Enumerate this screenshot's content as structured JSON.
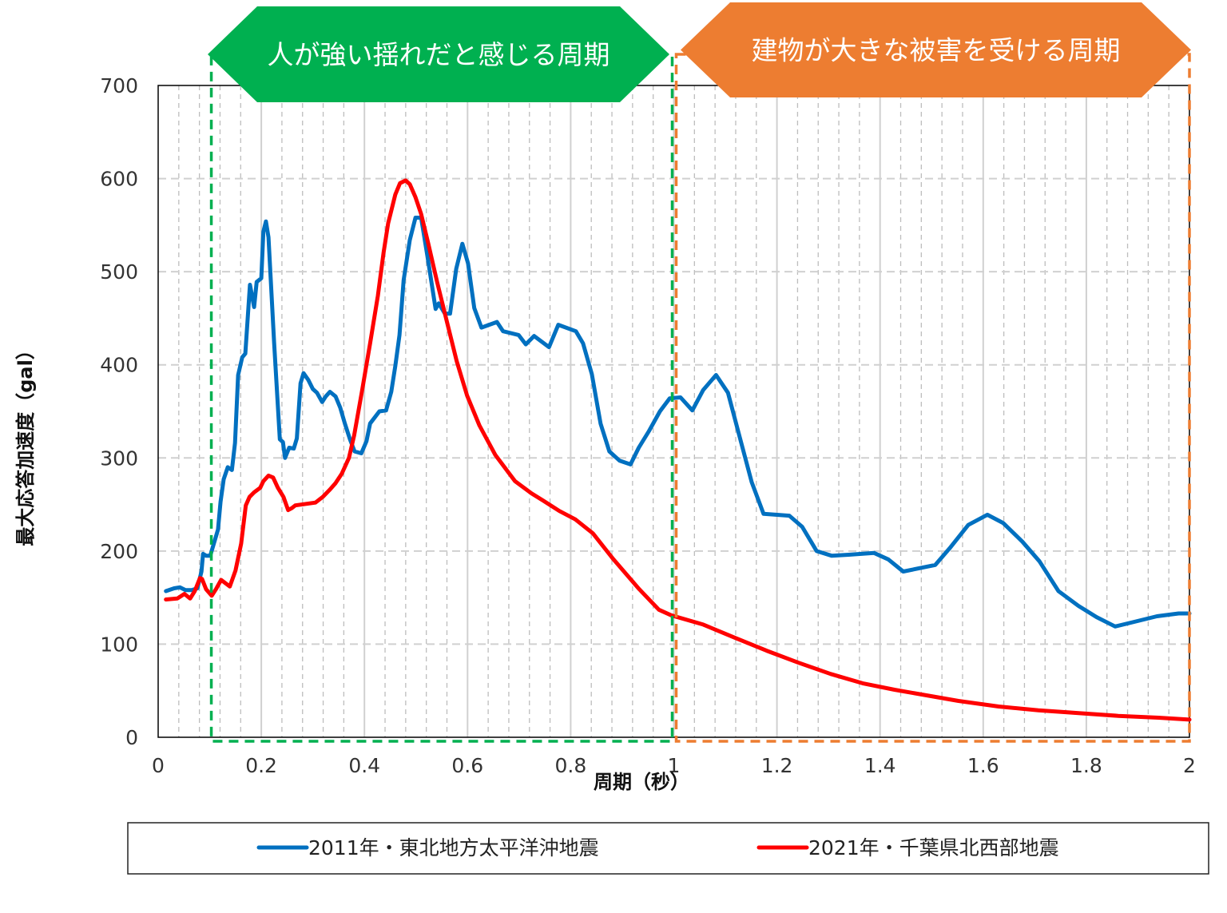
{
  "chart_data": {
    "type": "line",
    "xlabel": "周期（秒）",
    "ylabel": "最大応答加速度（gal）",
    "xlim": [
      0,
      2
    ],
    "ylim": [
      0,
      700
    ],
    "x_ticks": [
      "0",
      "0.2",
      "0.4",
      "0.6",
      "0.8",
      "1",
      "1.2",
      "1.4",
      "1.6",
      "1.8",
      "2"
    ],
    "y_ticks": [
      "0",
      "100",
      "200",
      "300",
      "400",
      "500",
      "600",
      "700"
    ],
    "grid": true,
    "legend_position": "bottom",
    "annotations": [
      {
        "label": "人が強い揺れだと感じる周期",
        "range": [
          0.1,
          1.0
        ],
        "color": "#00B050"
      },
      {
        "label": "建物が大きな被害を受ける周期",
        "range": [
          1.0,
          2.0
        ],
        "color": "#ED7D31"
      }
    ],
    "series": [
      {
        "name": "2011年・東北地方太平洋沖地震",
        "color": "#0070C0",
        "points": [
          [
            0.015,
            157
          ],
          [
            0.031,
            160
          ],
          [
            0.042,
            161
          ],
          [
            0.053,
            158
          ],
          [
            0.065,
            158
          ],
          [
            0.076,
            160
          ],
          [
            0.084,
            178
          ],
          [
            0.087,
            197
          ],
          [
            0.093,
            195
          ],
          [
            0.101,
            195
          ],
          [
            0.108,
            208
          ],
          [
            0.116,
            223
          ],
          [
            0.121,
            253
          ],
          [
            0.127,
            277
          ],
          [
            0.135,
            290
          ],
          [
            0.143,
            287
          ],
          [
            0.149,
            316
          ],
          [
            0.155,
            389
          ],
          [
            0.163,
            408
          ],
          [
            0.169,
            412
          ],
          [
            0.178,
            486
          ],
          [
            0.186,
            462
          ],
          [
            0.191,
            489
          ],
          [
            0.2,
            493
          ],
          [
            0.204,
            543
          ],
          [
            0.209,
            554
          ],
          [
            0.214,
            537
          ],
          [
            0.225,
            423
          ],
          [
            0.236,
            320
          ],
          [
            0.242,
            317
          ],
          [
            0.246,
            300
          ],
          [
            0.254,
            311
          ],
          [
            0.263,
            310
          ],
          [
            0.269,
            321
          ],
          [
            0.276,
            380
          ],
          [
            0.282,
            391
          ],
          [
            0.291,
            384
          ],
          [
            0.3,
            374
          ],
          [
            0.308,
            370
          ],
          [
            0.318,
            360
          ],
          [
            0.325,
            366
          ],
          [
            0.333,
            371
          ],
          [
            0.344,
            366
          ],
          [
            0.353,
            354
          ],
          [
            0.362,
            337
          ],
          [
            0.372,
            320
          ],
          [
            0.381,
            307
          ],
          [
            0.394,
            305
          ],
          [
            0.404,
            318
          ],
          [
            0.411,
            337
          ],
          [
            0.429,
            350
          ],
          [
            0.442,
            351
          ],
          [
            0.452,
            371
          ],
          [
            0.46,
            399
          ],
          [
            0.468,
            432
          ],
          [
            0.476,
            491
          ],
          [
            0.488,
            534
          ],
          [
            0.499,
            558
          ],
          [
            0.51,
            558
          ],
          [
            0.522,
            517
          ],
          [
            0.538,
            460
          ],
          [
            0.544,
            466
          ],
          [
            0.556,
            455
          ],
          [
            0.566,
            455
          ],
          [
            0.578,
            503
          ],
          [
            0.59,
            530
          ],
          [
            0.601,
            509
          ],
          [
            0.613,
            461
          ],
          [
            0.627,
            440
          ],
          [
            0.657,
            446
          ],
          [
            0.669,
            436
          ],
          [
            0.699,
            432
          ],
          [
            0.713,
            422
          ],
          [
            0.729,
            431
          ],
          [
            0.758,
            419
          ],
          [
            0.776,
            443
          ],
          [
            0.81,
            436
          ],
          [
            0.824,
            423
          ],
          [
            0.841,
            390
          ],
          [
            0.858,
            337
          ],
          [
            0.875,
            307
          ],
          [
            0.895,
            297
          ],
          [
            0.916,
            293
          ],
          [
            0.932,
            311
          ],
          [
            0.952,
            329
          ],
          [
            0.973,
            350
          ],
          [
            0.992,
            364
          ],
          [
            1.013,
            365
          ],
          [
            1.036,
            351
          ],
          [
            1.057,
            373
          ],
          [
            1.082,
            389
          ],
          [
            1.105,
            370
          ],
          [
            1.128,
            322
          ],
          [
            1.151,
            274
          ],
          [
            1.174,
            240
          ],
          [
            1.224,
            238
          ],
          [
            1.249,
            226
          ],
          [
            1.277,
            200
          ],
          [
            1.306,
            195
          ],
          [
            1.339,
            196
          ],
          [
            1.388,
            198
          ],
          [
            1.416,
            191
          ],
          [
            1.445,
            178
          ],
          [
            1.507,
            185
          ],
          [
            1.535,
            203
          ],
          [
            1.571,
            228
          ],
          [
            1.608,
            239
          ],
          [
            1.639,
            230
          ],
          [
            1.676,
            210
          ],
          [
            1.709,
            189
          ],
          [
            1.746,
            157
          ],
          [
            1.785,
            141
          ],
          [
            1.82,
            129
          ],
          [
            1.856,
            119
          ],
          [
            1.893,
            124
          ],
          [
            1.937,
            130
          ],
          [
            1.979,
            133
          ],
          [
            2.0,
            133
          ]
        ]
      },
      {
        "name": "2021年・千葉県北西部地震",
        "color": "#FF0000",
        "points": [
          [
            0.015,
            148
          ],
          [
            0.037,
            149
          ],
          [
            0.051,
            154
          ],
          [
            0.062,
            149
          ],
          [
            0.071,
            157
          ],
          [
            0.081,
            171
          ],
          [
            0.085,
            170
          ],
          [
            0.093,
            159
          ],
          [
            0.104,
            152
          ],
          [
            0.112,
            159
          ],
          [
            0.122,
            169
          ],
          [
            0.139,
            162
          ],
          [
            0.15,
            179
          ],
          [
            0.161,
            208
          ],
          [
            0.17,
            249
          ],
          [
            0.177,
            258
          ],
          [
            0.186,
            263
          ],
          [
            0.198,
            268
          ],
          [
            0.204,
            275
          ],
          [
            0.214,
            281
          ],
          [
            0.223,
            279
          ],
          [
            0.232,
            268
          ],
          [
            0.243,
            258
          ],
          [
            0.252,
            244
          ],
          [
            0.259,
            246
          ],
          [
            0.266,
            249
          ],
          [
            0.305,
            252
          ],
          [
            0.319,
            258
          ],
          [
            0.333,
            266
          ],
          [
            0.344,
            273
          ],
          [
            0.356,
            283
          ],
          [
            0.37,
            300
          ],
          [
            0.38,
            324
          ],
          [
            0.395,
            371
          ],
          [
            0.411,
            423
          ],
          [
            0.426,
            474
          ],
          [
            0.437,
            520
          ],
          [
            0.446,
            552
          ],
          [
            0.46,
            583
          ],
          [
            0.469,
            595
          ],
          [
            0.48,
            598
          ],
          [
            0.488,
            594
          ],
          [
            0.499,
            580
          ],
          [
            0.51,
            562
          ],
          [
            0.524,
            530
          ],
          [
            0.541,
            489
          ],
          [
            0.561,
            444
          ],
          [
            0.579,
            404
          ],
          [
            0.599,
            367
          ],
          [
            0.623,
            335
          ],
          [
            0.654,
            303
          ],
          [
            0.692,
            275
          ],
          [
            0.724,
            262
          ],
          [
            0.747,
            254
          ],
          [
            0.778,
            243
          ],
          [
            0.809,
            234
          ],
          [
            0.843,
            219
          ],
          [
            0.883,
            191
          ],
          [
            0.933,
            159
          ],
          [
            0.971,
            137
          ],
          [
            0.995,
            131
          ],
          [
            1.057,
            121
          ],
          [
            1.118,
            107
          ],
          [
            1.18,
            93
          ],
          [
            1.242,
            80
          ],
          [
            1.304,
            68
          ],
          [
            1.366,
            58
          ],
          [
            1.428,
            51
          ],
          [
            1.49,
            45
          ],
          [
            1.552,
            39
          ],
          [
            1.63,
            33
          ],
          [
            1.707,
            29
          ],
          [
            1.785,
            26
          ],
          [
            1.862,
            23
          ],
          [
            1.94,
            21
          ],
          [
            2.0,
            19
          ]
        ]
      }
    ]
  }
}
